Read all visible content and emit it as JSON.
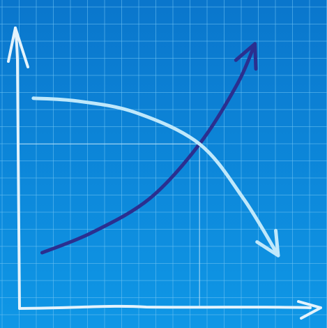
{
  "colors": {
    "background_top": "#0a76cc",
    "background_bottom": "#0f97e6",
    "grid_line": "#6fc3f2",
    "axis": "#e4f3fc",
    "guide_line": "#bfe3f8",
    "rising_series": "#2b2f8f",
    "falling_series": "#bfe8fb"
  },
  "chart_data": {
    "type": "line",
    "title": "",
    "xlabel": "",
    "ylabel": "",
    "grid": true,
    "axis_tick_labels": false,
    "style": "hand-drawn sketch on blueprint grid",
    "xlim": [
      0,
      10
    ],
    "ylim": [
      0,
      10
    ],
    "series": [
      {
        "role": "rising",
        "color": "#2b2f8f",
        "points": [
          [
            0.8,
            1.9
          ],
          [
            2.5,
            2.6
          ],
          [
            4.5,
            3.8
          ],
          [
            6.2,
            5.7
          ],
          [
            7.5,
            7.8
          ],
          [
            8.1,
            9.2
          ]
        ],
        "arrowhead": "end"
      },
      {
        "role": "falling",
        "color": "#bfe8fb",
        "points": [
          [
            0.5,
            7.3
          ],
          [
            2.0,
            7.2
          ],
          [
            4.0,
            6.8
          ],
          [
            6.2,
            5.7
          ],
          [
            7.7,
            3.8
          ],
          [
            8.9,
            1.8
          ]
        ],
        "arrowhead": "end"
      }
    ],
    "crossing_point": [
      6.2,
      5.7
    ],
    "crossing_guides": true
  }
}
